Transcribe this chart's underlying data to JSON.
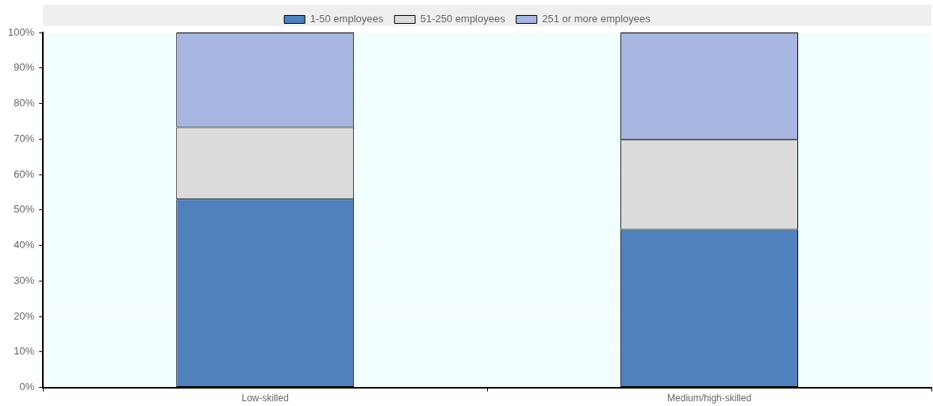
{
  "chart_data": {
    "type": "bar",
    "stacked": true,
    "categories": [
      "Low-skilled",
      "Medium/high-skilled"
    ],
    "series": [
      {
        "name": "1-50 employees",
        "color": "#4f81bd",
        "values": [
          53.0,
          44.5
        ]
      },
      {
        "name": "51-250 employees",
        "color": "#dcdcdc",
        "values": [
          20.3,
          25.3
        ]
      },
      {
        "name": "251 or more employees",
        "color": "#a7b7e1",
        "values": [
          26.7,
          30.2
        ]
      }
    ],
    "ylim": [
      0,
      100
    ],
    "yticks": [
      {
        "value": 0,
        "label": "0%"
      },
      {
        "value": 10,
        "label": "10%"
      },
      {
        "value": 20,
        "label": "20%"
      },
      {
        "value": 30,
        "label": "30%"
      },
      {
        "value": 40,
        "label": "40%"
      },
      {
        "value": 50,
        "label": "50%"
      },
      {
        "value": 60,
        "label": "60%"
      },
      {
        "value": 70,
        "label": "70%"
      },
      {
        "value": 80,
        "label": "80%"
      },
      {
        "value": 90,
        "label": "90%"
      },
      {
        "value": 100,
        "label": "100%"
      }
    ],
    "grid": "y",
    "legend": "top"
  }
}
